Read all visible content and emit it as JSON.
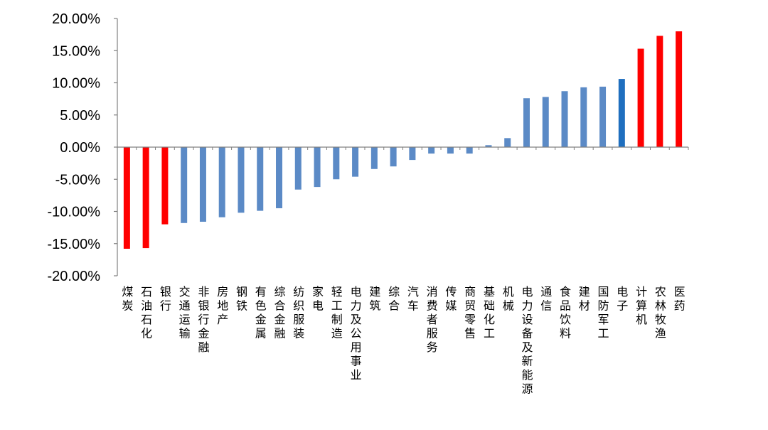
{
  "chart_data": {
    "type": "bar",
    "title": "",
    "xlabel": "",
    "ylabel": "",
    "ylim": [
      -0.2,
      0.2
    ],
    "yticks": [
      "20.00%",
      "15.00%",
      "10.00%",
      "5.00%",
      "0.00%",
      "-5.00%",
      "-10.00%",
      "-15.00%",
      "-20.00%"
    ],
    "grid": false,
    "legend": "none",
    "categories": [
      "煤炭",
      "石油石化",
      "银行",
      "交通运输",
      "非银行金融",
      "房地产",
      "钢铁",
      "有色金属",
      "综合金融",
      "纺织服装",
      "家电",
      "轻工制造",
      "电力及公用事业",
      "建筑",
      "综合",
      "汽车",
      "消费者服务",
      "传媒",
      "商贸零售",
      "基础化工",
      "机械",
      "电力设备及新能源",
      "通信",
      "食品饮料",
      "建材",
      "国防军工",
      "电子",
      "计算机",
      "农林牧渔",
      "医药"
    ],
    "values": [
      -0.158,
      -0.157,
      -0.12,
      -0.118,
      -0.116,
      -0.109,
      -0.102,
      -0.099,
      -0.095,
      -0.066,
      -0.062,
      -0.05,
      -0.046,
      -0.034,
      -0.03,
      -0.02,
      -0.01,
      -0.01,
      -0.01,
      0.003,
      0.014,
      0.076,
      0.078,
      0.087,
      0.093,
      0.094,
      0.106,
      0.153,
      0.173,
      0.18
    ],
    "colors": {
      "default": "#5b8ac6",
      "highlight_red": "#ff0000",
      "highlight_blue": "#1f6fbf",
      "axis": "#808080"
    },
    "highlight_red_indices": [
      0,
      1,
      2,
      27,
      28,
      29
    ],
    "highlight_blue_indices": [
      26
    ]
  }
}
